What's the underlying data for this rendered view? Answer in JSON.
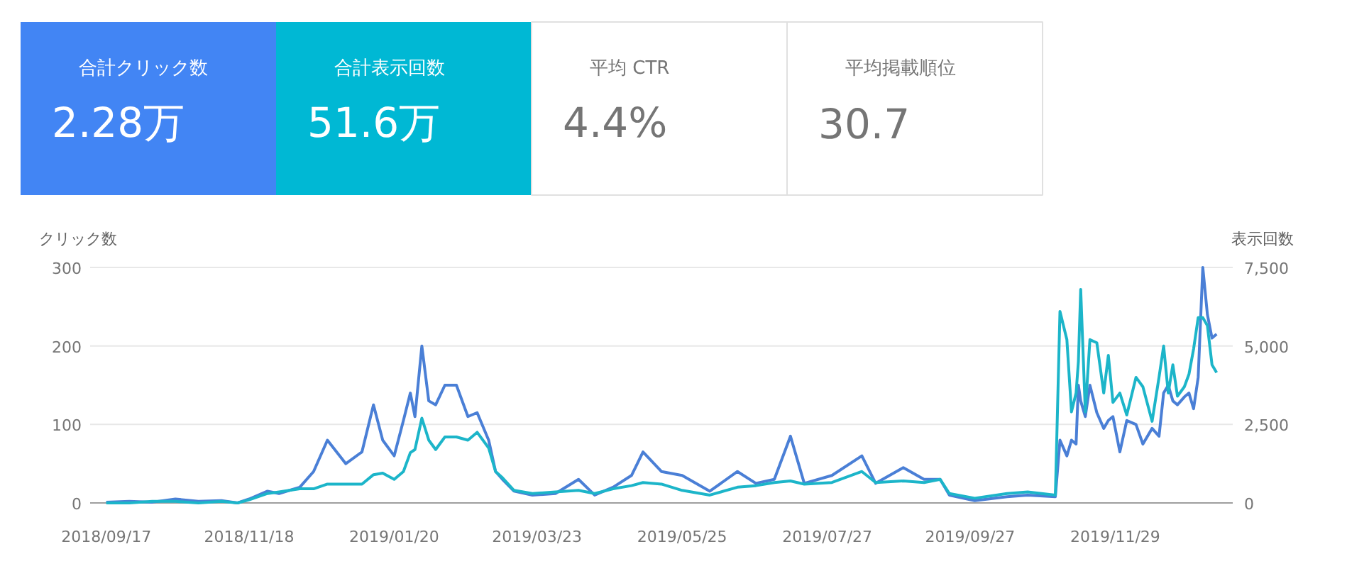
{
  "chart_data": [
    {
      "type": "other",
      "annotations": [
        "合計クリック数",
        "2.28万",
        "合計表示回数",
        "51.6万",
        "平均 CTR",
        "4.4%",
        "平均掲載順位",
        "30.7"
      ],
      "colors": [
        "#4285f4",
        "#00b8d4",
        null,
        null
      ]
    },
    {
      "type": "line",
      "ylabel": "クリック数",
      "y2label": "表示回数",
      "grid": "y",
      "marker": "none",
      "line_style": "solid",
      "x": [
        "2018-09-17",
        "2018-09-27",
        "2018-10-07",
        "2018-10-17",
        "2018-10-27",
        "2018-11-06",
        "2018-11-13",
        "2018-11-18",
        "2018-11-26",
        "2018-12-01",
        "2018-12-10",
        "2018-12-16",
        "2018-12-22",
        "2018-12-30",
        "2019-01-06",
        "2019-01-11",
        "2019-01-15",
        "2019-01-20",
        "2019-01-24",
        "2019-01-27",
        "2019-01-29",
        "2019-02-01",
        "2019-02-04",
        "2019-02-07",
        "2019-02-11",
        "2019-02-16",
        "2019-02-21",
        "2019-02-25",
        "2019-03-02",
        "2019-03-05",
        "2019-03-08",
        "2019-03-13",
        "2019-03-21",
        "2019-03-31",
        "2019-04-10",
        "2019-04-17",
        "2019-04-25",
        "2019-05-03",
        "2019-05-08",
        "2019-05-16",
        "2019-05-25",
        "2019-06-06",
        "2019-06-18",
        "2019-06-26",
        "2019-07-04",
        "2019-07-11",
        "2019-07-17",
        "2019-07-29",
        "2019-08-11",
        "2019-08-17",
        "2019-08-29",
        "2019-09-07",
        "2019-09-14",
        "2019-09-18",
        "2019-09-29",
        "2019-10-13",
        "2019-10-22",
        "2019-11-03",
        "2019-11-05",
        "2019-11-08",
        "2019-11-10",
        "2019-11-12",
        "2019-11-13",
        "2019-11-14",
        "2019-11-16",
        "2019-11-18",
        "2019-11-21",
        "2019-11-24",
        "2019-11-26",
        "2019-11-28",
        "2019-12-01",
        "2019-12-04",
        "2019-12-08",
        "2019-12-11",
        "2019-12-15",
        "2019-12-18",
        "2019-12-20",
        "2019-12-22",
        "2019-12-24",
        "2019-12-26",
        "2019-12-29",
        "2019-12-31",
        "2020-01-02",
        "2020-01-04",
        "2020-01-06",
        "2020-01-08",
        "2020-01-10",
        "2020-01-12"
      ],
      "xlim": [
        "2018-09-10",
        "2020-01-19"
      ],
      "xticks": [
        {
          "value": "2018-09-17",
          "label": "2018/09/17"
        },
        {
          "value": "2018-11-18",
          "label": "2018/11/18"
        },
        {
          "value": "2019-01-20",
          "label": "2019/01/20"
        },
        {
          "value": "2019-03-23",
          "label": "2019/03/23"
        },
        {
          "value": "2019-05-25",
          "label": "2019/05/25"
        },
        {
          "value": "2019-07-27",
          "label": "2019/07/27"
        },
        {
          "value": "2019-09-27",
          "label": "2019/09/27"
        },
        {
          "value": "2019-11-29",
          "label": "2019/11/29"
        }
      ],
      "ylim": [
        0,
        300
      ],
      "yticks": [
        0,
        100,
        200,
        300
      ],
      "y2lim": [
        0,
        7500
      ],
      "y2ticks": [
        0,
        {
          "value": 2500,
          "label": "2,500"
        },
        {
          "value": 5000,
          "label": "5,000"
        },
        {
          "value": 7500,
          "label": "7,500"
        }
      ],
      "series": [
        {
          "color": "#4a7fd6",
          "values": [
            1,
            2,
            1,
            5,
            2,
            3,
            0,
            5,
            15,
            12,
            20,
            40,
            80,
            50,
            65,
            125,
            80,
            60,
            105,
            140,
            110,
            200,
            130,
            125,
            150,
            150,
            110,
            115,
            80,
            40,
            30,
            15,
            10,
            12,
            30,
            10,
            20,
            35,
            65,
            40,
            35,
            15,
            40,
            25,
            30,
            85,
            25,
            35,
            60,
            25,
            45,
            30,
            30,
            10,
            3,
            8,
            10,
            8,
            80,
            60,
            80,
            75,
            150,
            130,
            110,
            150,
            115,
            95,
            105,
            110,
            65,
            105,
            100,
            75,
            95,
            85,
            140,
            150,
            130,
            125,
            135,
            140,
            120,
            160,
            300,
            240,
            210,
            215
          ]
        },
        {
          "color": "#1cb5c9",
          "axis": "y2",
          "values": [
            0,
            0,
            50,
            50,
            0,
            50,
            0,
            100,
            300,
            350,
            450,
            450,
            600,
            600,
            600,
            900,
            950,
            750,
            1000,
            1600,
            1700,
            2700,
            2000,
            1700,
            2100,
            2100,
            2000,
            2250,
            1750,
            1000,
            800,
            400,
            300,
            350,
            400,
            300,
            450,
            550,
            650,
            600,
            400,
            250,
            500,
            550,
            650,
            700,
            600,
            650,
            1000,
            650,
            700,
            650,
            750,
            300,
            150,
            300,
            350,
            250,
            6100,
            5200,
            2900,
            3500,
            4500,
            6800,
            2900,
            5200,
            5100,
            3500,
            4700,
            3200,
            3500,
            2800,
            4000,
            3700,
            2600,
            4000,
            5000,
            3500,
            4400,
            3400,
            3700,
            4100,
            4900,
            5900,
            5900,
            5650,
            4400,
            4150
          ]
        }
      ]
    }
  ]
}
